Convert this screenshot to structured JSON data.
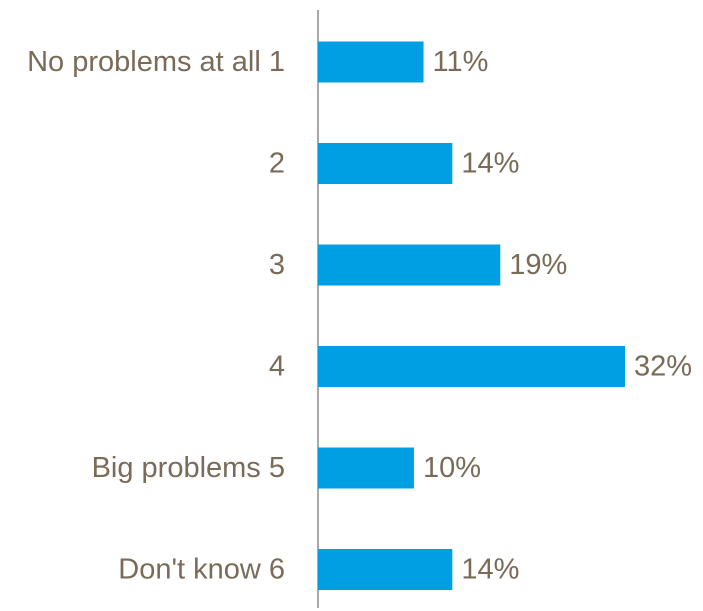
{
  "chart_data": {
    "type": "bar",
    "orientation": "horizontal",
    "categories": [
      "No problems at all 1",
      "2",
      "3",
      "4",
      "Big problems 5",
      "Don't know 6"
    ],
    "values": [
      11,
      14,
      19,
      32,
      10,
      14
    ],
    "value_labels": [
      "11%",
      "14%",
      "19%",
      "32%",
      "10%",
      "14%"
    ],
    "unit": "%",
    "title": "",
    "xlabel": "",
    "ylabel": "",
    "xlim": [
      0,
      32
    ],
    "grid": false,
    "legend": "none",
    "colors": {
      "bar": "#009fe3",
      "text": "#7a6a58",
      "axis": "#8c8c8c"
    }
  }
}
